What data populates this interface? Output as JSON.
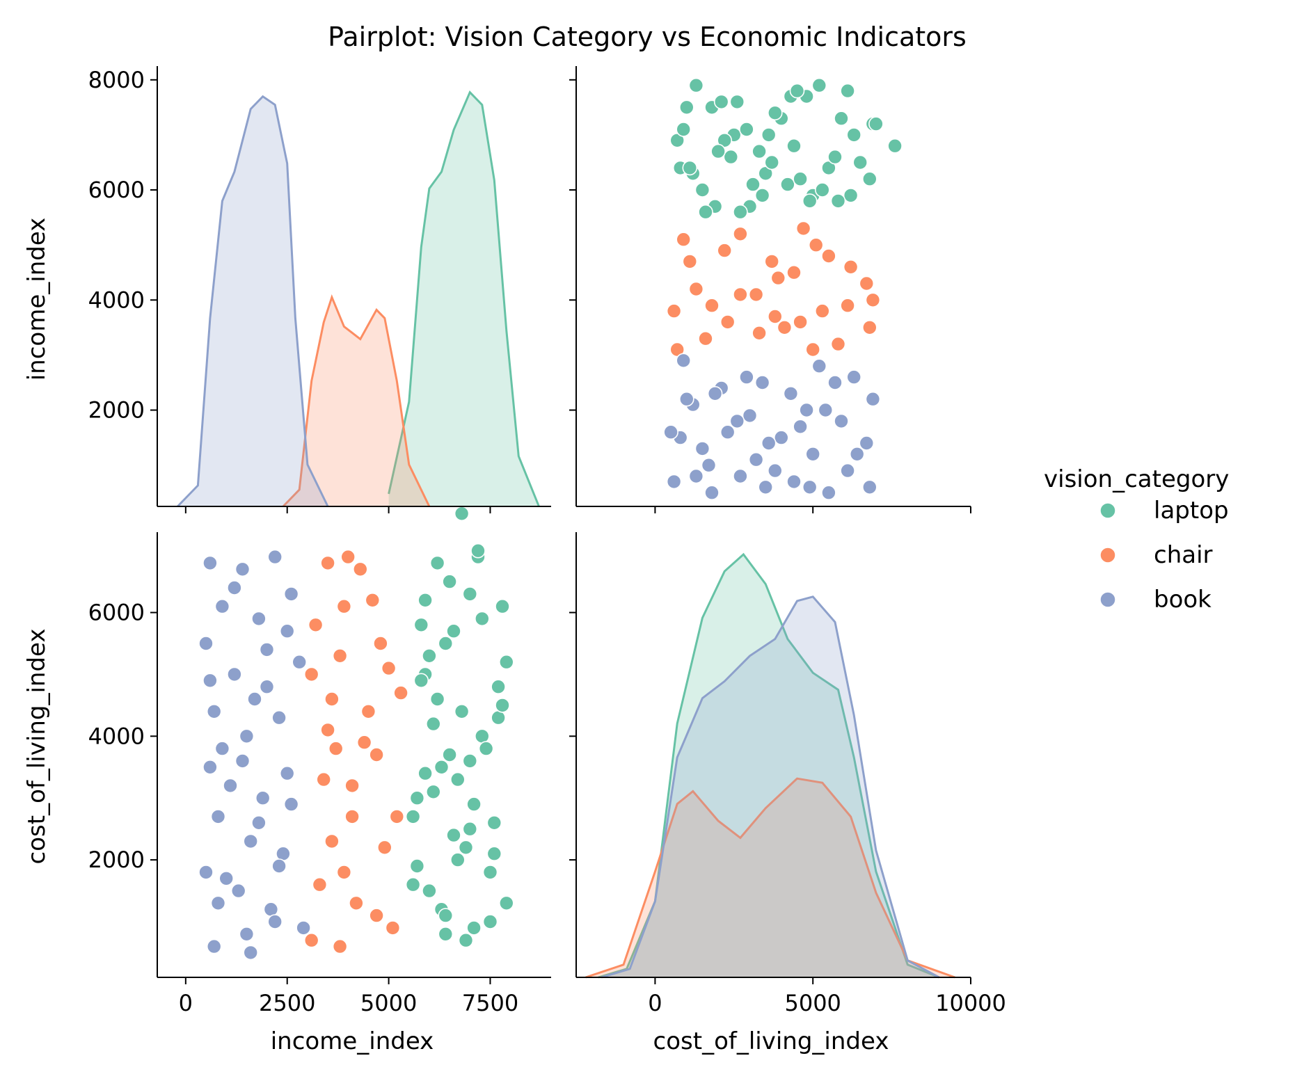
{
  "chart_data": {
    "type": "scatter",
    "kind": "pairplot",
    "title": "Pairplot: Vision Category vs Economic Indicators",
    "variables": [
      "income_index",
      "cost_of_living_index"
    ],
    "axes": {
      "income_index": {
        "ticks": [
          0,
          2500,
          5000,
          7500
        ],
        "range": [
          -700,
          9000
        ]
      },
      "cost_of_living_index": {
        "ticks": [
          0,
          5000,
          10000
        ],
        "range": [
          -2500,
          10000
        ]
      },
      "income_index_y": {
        "ticks": [
          2000,
          4000,
          6000,
          8000
        ],
        "range": [
          250,
          8250
        ]
      },
      "cost_of_living_index_y": {
        "ticks": [
          2000,
          4000,
          6000
        ],
        "range": [
          100,
          7300
        ]
      }
    },
    "legend": {
      "title": "vision_category",
      "placement": "right",
      "entries": [
        {
          "name": "laptop",
          "color": "#66c2a5"
        },
        {
          "name": "chair",
          "color": "#fc8d62"
        },
        {
          "name": "book",
          "color": "#8da0cb"
        }
      ]
    },
    "series": [
      {
        "name": "laptop",
        "color": "#66c2a5",
        "points": [
          [
            6800,
            7600
          ],
          [
            7200,
            6900
          ],
          [
            5900,
            6200
          ],
          [
            6400,
            5500
          ],
          [
            7700,
            4800
          ],
          [
            6100,
            4200
          ],
          [
            7000,
            3600
          ],
          [
            5700,
            3000
          ],
          [
            6600,
            2400
          ],
          [
            7500,
            1800
          ],
          [
            6300,
            1200
          ],
          [
            6900,
            700
          ],
          [
            5800,
            5800
          ],
          [
            7900,
            5200
          ],
          [
            6200,
            4600
          ],
          [
            7300,
            4000
          ],
          [
            6700,
            3300
          ],
          [
            5600,
            2700
          ],
          [
            7600,
            2100
          ],
          [
            6000,
            1500
          ],
          [
            7100,
            900
          ],
          [
            6500,
            6500
          ],
          [
            7800,
            6100
          ],
          [
            5900,
            5000
          ],
          [
            6800,
            4400
          ],
          [
            7400,
            3800
          ],
          [
            6100,
            3100
          ],
          [
            7000,
            2500
          ],
          [
            5700,
            1900
          ],
          [
            7900,
            1300
          ],
          [
            6400,
            800
          ],
          [
            7200,
            7000
          ],
          [
            6600,
            5700
          ],
          [
            5800,
            4900
          ],
          [
            7700,
            4300
          ],
          [
            6300,
            3500
          ],
          [
            7100,
            2900
          ],
          [
            6900,
            2200
          ],
          [
            5600,
            1600
          ],
          [
            7500,
            1000
          ],
          [
            6200,
            6800
          ],
          [
            7300,
            5900
          ],
          [
            6000,
            5300
          ],
          [
            7800,
            4500
          ],
          [
            6500,
            3700
          ],
          [
            6700,
            2000
          ],
          [
            7000,
            6300
          ],
          [
            5900,
            3400
          ],
          [
            7600,
            2600
          ],
          [
            6400,
            1100
          ]
        ],
        "kde_income": [
          [
            5000,
            0.03
          ],
          [
            5500,
            0.25
          ],
          [
            5800,
            0.62
          ],
          [
            6000,
            0.76
          ],
          [
            6300,
            0.8
          ],
          [
            6600,
            0.9
          ],
          [
            7000,
            0.99
          ],
          [
            7300,
            0.96
          ],
          [
            7600,
            0.78
          ],
          [
            7900,
            0.42
          ],
          [
            8200,
            0.12
          ],
          [
            8700,
            0.0
          ]
        ],
        "kde_cost": [
          [
            -1800,
            0.0
          ],
          [
            -900,
            0.02
          ],
          [
            0,
            0.18
          ],
          [
            700,
            0.6
          ],
          [
            1500,
            0.85
          ],
          [
            2200,
            0.96
          ],
          [
            2800,
            1.0
          ],
          [
            3500,
            0.93
          ],
          [
            4200,
            0.8
          ],
          [
            5000,
            0.72
          ],
          [
            5800,
            0.68
          ],
          [
            6300,
            0.52
          ],
          [
            7000,
            0.25
          ],
          [
            8000,
            0.03
          ],
          [
            9000,
            0.0
          ]
        ]
      },
      {
        "name": "chair",
        "color": "#fc8d62",
        "points": [
          [
            3500,
            6800
          ],
          [
            4300,
            6700
          ],
          [
            3900,
            6100
          ],
          [
            4800,
            5500
          ],
          [
            3100,
            5000
          ],
          [
            4500,
            4400
          ],
          [
            3700,
            3800
          ],
          [
            4100,
            3200
          ],
          [
            5200,
            2700
          ],
          [
            3300,
            1600
          ],
          [
            4700,
            1100
          ],
          [
            3800,
            600
          ],
          [
            4000,
            6900
          ],
          [
            3200,
            5800
          ],
          [
            5000,
            5100
          ],
          [
            3600,
            4600
          ],
          [
            4400,
            3900
          ],
          [
            3400,
            3300
          ],
          [
            4900,
            2200
          ],
          [
            3900,
            1800
          ],
          [
            4200,
            1300
          ],
          [
            3100,
            700
          ],
          [
            4600,
            6200
          ],
          [
            3800,
            5300
          ],
          [
            5300,
            4700
          ],
          [
            3500,
            4100
          ],
          [
            4100,
            2700
          ],
          [
            4700,
            3700
          ],
          [
            3600,
            2300
          ],
          [
            5100,
            900
          ]
        ],
        "kde_income": [
          [
            2400,
            0.0
          ],
          [
            2800,
            0.04
          ],
          [
            3100,
            0.3
          ],
          [
            3400,
            0.44
          ],
          [
            3600,
            0.5
          ],
          [
            3900,
            0.43
          ],
          [
            4300,
            0.4
          ],
          [
            4700,
            0.47
          ],
          [
            4900,
            0.45
          ],
          [
            5200,
            0.3
          ],
          [
            5500,
            0.1
          ],
          [
            6000,
            0.0
          ]
        ],
        "kde_cost": [
          [
            -2200,
            0.0
          ],
          [
            -1000,
            0.03
          ],
          [
            0,
            0.25
          ],
          [
            700,
            0.41
          ],
          [
            1200,
            0.44
          ],
          [
            2000,
            0.37
          ],
          [
            2700,
            0.33
          ],
          [
            3500,
            0.4
          ],
          [
            4500,
            0.47
          ],
          [
            5300,
            0.46
          ],
          [
            6200,
            0.38
          ],
          [
            7000,
            0.2
          ],
          [
            8000,
            0.04
          ],
          [
            9500,
            0.0
          ]
        ]
      },
      {
        "name": "book",
        "color": "#8da0cb",
        "points": [
          [
            600,
            6800
          ],
          [
            1400,
            6700
          ],
          [
            2200,
            6900
          ],
          [
            900,
            6100
          ],
          [
            1800,
            5900
          ],
          [
            2600,
            6300
          ],
          [
            500,
            5500
          ],
          [
            1200,
            5000
          ],
          [
            2000,
            4800
          ],
          [
            2800,
            5200
          ],
          [
            700,
            4400
          ],
          [
            1500,
            4000
          ],
          [
            2300,
            4300
          ],
          [
            600,
            3500
          ],
          [
            1100,
            3200
          ],
          [
            1900,
            3000
          ],
          [
            2500,
            3400
          ],
          [
            800,
            2700
          ],
          [
            1600,
            2300
          ],
          [
            2400,
            2100
          ],
          [
            500,
            1800
          ],
          [
            1300,
            1500
          ],
          [
            2100,
            1200
          ],
          [
            2900,
            900
          ],
          [
            700,
            600
          ],
          [
            1500,
            800
          ],
          [
            2200,
            1000
          ],
          [
            1000,
            1700
          ],
          [
            1800,
            2600
          ],
          [
            2600,
            2900
          ],
          [
            900,
            3800
          ],
          [
            1700,
            4600
          ],
          [
            2500,
            5700
          ],
          [
            1200,
            6400
          ],
          [
            2000,
            5400
          ],
          [
            600,
            4900
          ],
          [
            1400,
            3600
          ],
          [
            2300,
            1900
          ],
          [
            800,
            1300
          ],
          [
            1600,
            500
          ]
        ],
        "kde_income": [
          [
            -200,
            0.0
          ],
          [
            300,
            0.05
          ],
          [
            600,
            0.45
          ],
          [
            900,
            0.73
          ],
          [
            1200,
            0.8
          ],
          [
            1600,
            0.95
          ],
          [
            1900,
            0.98
          ],
          [
            2200,
            0.96
          ],
          [
            2500,
            0.82
          ],
          [
            2700,
            0.45
          ],
          [
            3000,
            0.1
          ],
          [
            3500,
            0.0
          ]
        ],
        "kde_cost": [
          [
            -1700,
            0.0
          ],
          [
            -800,
            0.02
          ],
          [
            0,
            0.18
          ],
          [
            700,
            0.52
          ],
          [
            1500,
            0.66
          ],
          [
            2200,
            0.7
          ],
          [
            3000,
            0.76
          ],
          [
            3800,
            0.8
          ],
          [
            4500,
            0.89
          ],
          [
            5000,
            0.9
          ],
          [
            5700,
            0.84
          ],
          [
            6300,
            0.62
          ],
          [
            7000,
            0.3
          ],
          [
            8000,
            0.04
          ],
          [
            9000,
            0.0
          ]
        ]
      }
    ]
  }
}
